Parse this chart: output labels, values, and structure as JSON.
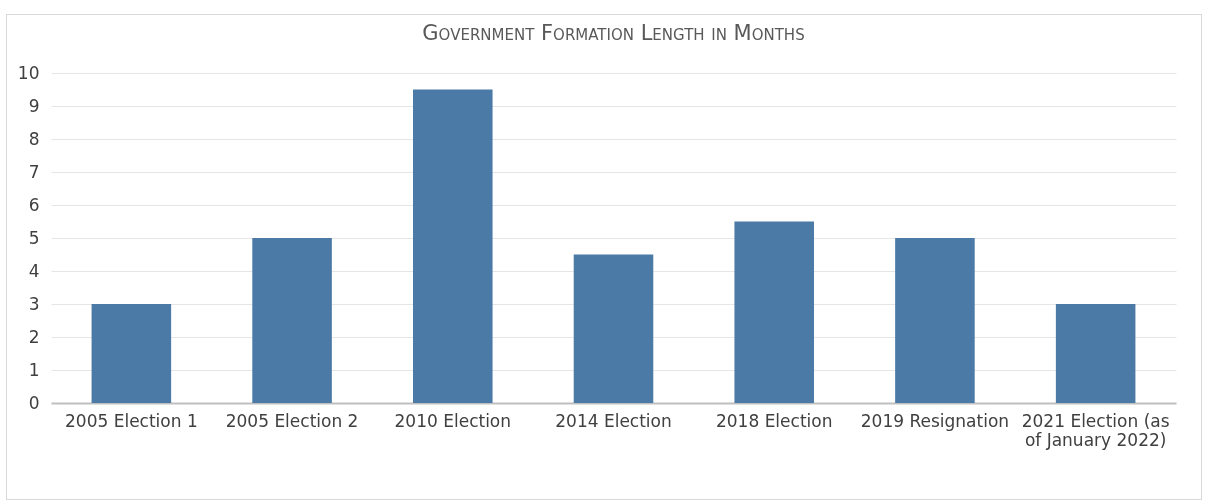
{
  "chart_data": {
    "type": "bar",
    "title": "Government Formation Length in Months",
    "categories": [
      "2005 Election 1",
      "2005 Election 2",
      "2010 Election",
      "2014 Election",
      "2018 Election",
      "2019 Resignation",
      "2021 Election (as of January 2022)"
    ],
    "values": [
      3,
      5,
      9.5,
      4.5,
      5.5,
      5,
      3
    ],
    "color": "#4a7aa5",
    "ylim": [
      0,
      10
    ],
    "yticks": [
      0,
      1,
      2,
      3,
      4,
      5,
      6,
      7,
      8,
      9,
      10
    ],
    "grid": "y"
  }
}
